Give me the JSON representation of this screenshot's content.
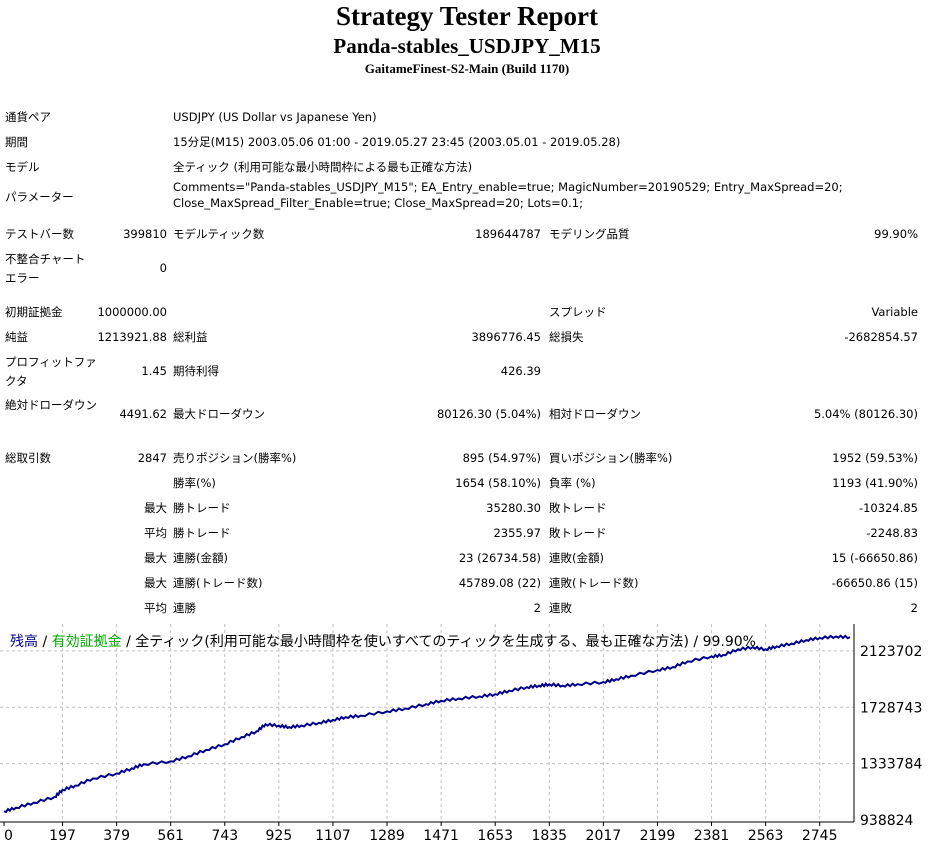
{
  "header": {
    "title": "Strategy Tester Report",
    "strategy": "Panda-stables_USDJPY_M15",
    "server": "GaitameFinest-S2-Main (Build 1170)"
  },
  "info": {
    "pair_label": "通貨ペア",
    "pair_value": "USDJPY (US Dollar vs Japanese Yen)",
    "period_label": "期間",
    "period_value": "15分足(M15) 2003.05.06 01:00 - 2019.05.27 23:45 (2003.05.01 - 2019.05.28)",
    "model_label": "モデル",
    "model_value": "全ティック (利用可能な最小時間枠による最も正確な方法)",
    "params_label": "パラメーター",
    "params_line1": "Comments=\"Panda-stables_USDJPY_M15\"; EA_Entry_enable=true; MagicNumber=20190529; Entry_MaxSpread=20;",
    "params_line2": "Close_MaxSpread_Filter_Enable=true; Close_MaxSpread=20; Lots=0.1;"
  },
  "stats": {
    "bars_label": "テストバー数",
    "bars_value": "399810",
    "ticks_label": "モデルティック数",
    "ticks_value": "189644787",
    "quality_label": "モデリング品質",
    "quality_value": "99.90%",
    "mismatch_label": "不整合チャート エラー",
    "mismatch_value": "0",
    "deposit_label": "初期証拠金",
    "deposit_value": "1000000.00",
    "spread_label": "スプレッド",
    "spread_value": "Variable",
    "net_label": "純益",
    "net_value": "1213921.88",
    "gross_profit_label": "総利益",
    "gross_profit_value": "3896776.45",
    "gross_loss_label": "総損失",
    "gross_loss_value": "-2682854.57",
    "pf_label": "プロフィットファクタ",
    "pf_value": "1.45",
    "expected_label": "期待利得",
    "expected_value": "426.39",
    "abs_dd_label": "絶対ドローダウン",
    "abs_dd_value": "4491.62",
    "max_dd_label": "最大ドローダウン",
    "max_dd_value": "80126.30 (5.04%)",
    "rel_dd_label": "相対ドローダウン",
    "rel_dd_value": "5.04% (80126.30)",
    "trades_label": "総取引数",
    "trades_value": "2847",
    "short_label": "売りポジション(勝率%)",
    "short_value": "895 (54.97%)",
    "long_label": "買いポジション(勝率%)",
    "long_value": "1952 (59.53%)",
    "win_pct_label": "勝率(%)",
    "win_pct_value": "1654 (58.10%)",
    "loss_pct_label": "負率 (%)",
    "loss_pct_value": "1193 (41.90%)",
    "max_label": "最大",
    "largest_win_label": "勝トレード",
    "largest_win_value": "35280.30",
    "largest_loss_label": "敗トレード",
    "largest_loss_value": "-10324.85",
    "avg_label": "平均",
    "avg_win_label": "勝トレード",
    "avg_win_value": "2355.97",
    "avg_loss_label": "敗トレード",
    "avg_loss_value": "-2248.83",
    "max2_label": "最大",
    "consec_win_money_label": "連勝(金額)",
    "consec_win_money_value": "23 (26734.58)",
    "consec_loss_money_label": "連敗(金額)",
    "consec_loss_money_value": "15 (-66650.86)",
    "max3_label": "最大",
    "consec_win_count_label": "連勝(トレード数)",
    "consec_win_count_value": "45789.08 (22)",
    "consec_loss_count_label": "連敗(トレード数)",
    "consec_loss_count_value": "-66650.86 (15)",
    "avg2_label": "平均",
    "avg_consec_win_label": "連勝",
    "avg_consec_win_value": "2",
    "avg_consec_loss_label": "連敗",
    "avg_consec_loss_value": "2"
  },
  "chart_legend": {
    "balance": "残高",
    "sep1": " / ",
    "equity": "有効証拠金",
    "sep2": " / ",
    "rest": "全ティック(利用可能な最小時間枠を使いすべてのティックを生成する、最も正確な方法) / 99.90%"
  },
  "colors": {
    "balance_line": "#00008b",
    "balance_legend": "#00008b",
    "equity_legend": "#00aa00",
    "grid": "#c0c0c0"
  },
  "chart_data": {
    "type": "line",
    "title": "",
    "xlabel": "",
    "ylabel": "",
    "x_ticks": [
      0,
      197,
      379,
      561,
      743,
      925,
      1107,
      1289,
      1471,
      1653,
      1835,
      2017,
      2199,
      2381,
      2563,
      2745
    ],
    "y_ticks": [
      938824,
      1333784,
      1728743,
      2123702
    ],
    "xlim": [
      0,
      2847
    ],
    "ylim": [
      938824,
      2270000
    ],
    "grid": true,
    "series": [
      {
        "name": "残高",
        "x": [
          0,
          40,
          100,
          170,
          197,
          240,
          300,
          379,
          430,
          470,
          561,
          620,
          680,
          743,
          800,
          850,
          880,
          925,
          960,
          1000,
          1060,
          1107,
          1150,
          1200,
          1289,
          1350,
          1420,
          1471,
          1530,
          1600,
          1653,
          1700,
          1760,
          1800,
          1835,
          1880,
          1930,
          2017,
          2060,
          2110,
          2199,
          2250,
          2300,
          2381,
          2420,
          2470,
          2520,
          2563,
          2600,
          2650,
          2700,
          2745,
          2800,
          2847
        ],
        "values": [
          1000000,
          1025000,
          1060000,
          1100000,
          1150000,
          1180000,
          1230000,
          1265000,
          1300000,
          1330000,
          1350000,
          1385000,
          1430000,
          1470000,
          1520000,
          1560000,
          1610000,
          1600000,
          1590000,
          1600000,
          1620000,
          1640000,
          1660000,
          1670000,
          1700000,
          1720000,
          1750000,
          1775000,
          1790000,
          1805000,
          1820000,
          1845000,
          1870000,
          1880000,
          1890000,
          1880000,
          1890000,
          1905000,
          1925000,
          1950000,
          1990000,
          2010000,
          2050000,
          2085000,
          2095000,
          2135000,
          2150000,
          2135000,
          2155000,
          2175000,
          2200000,
          2215000,
          2225000,
          2220000
        ]
      }
    ]
  }
}
